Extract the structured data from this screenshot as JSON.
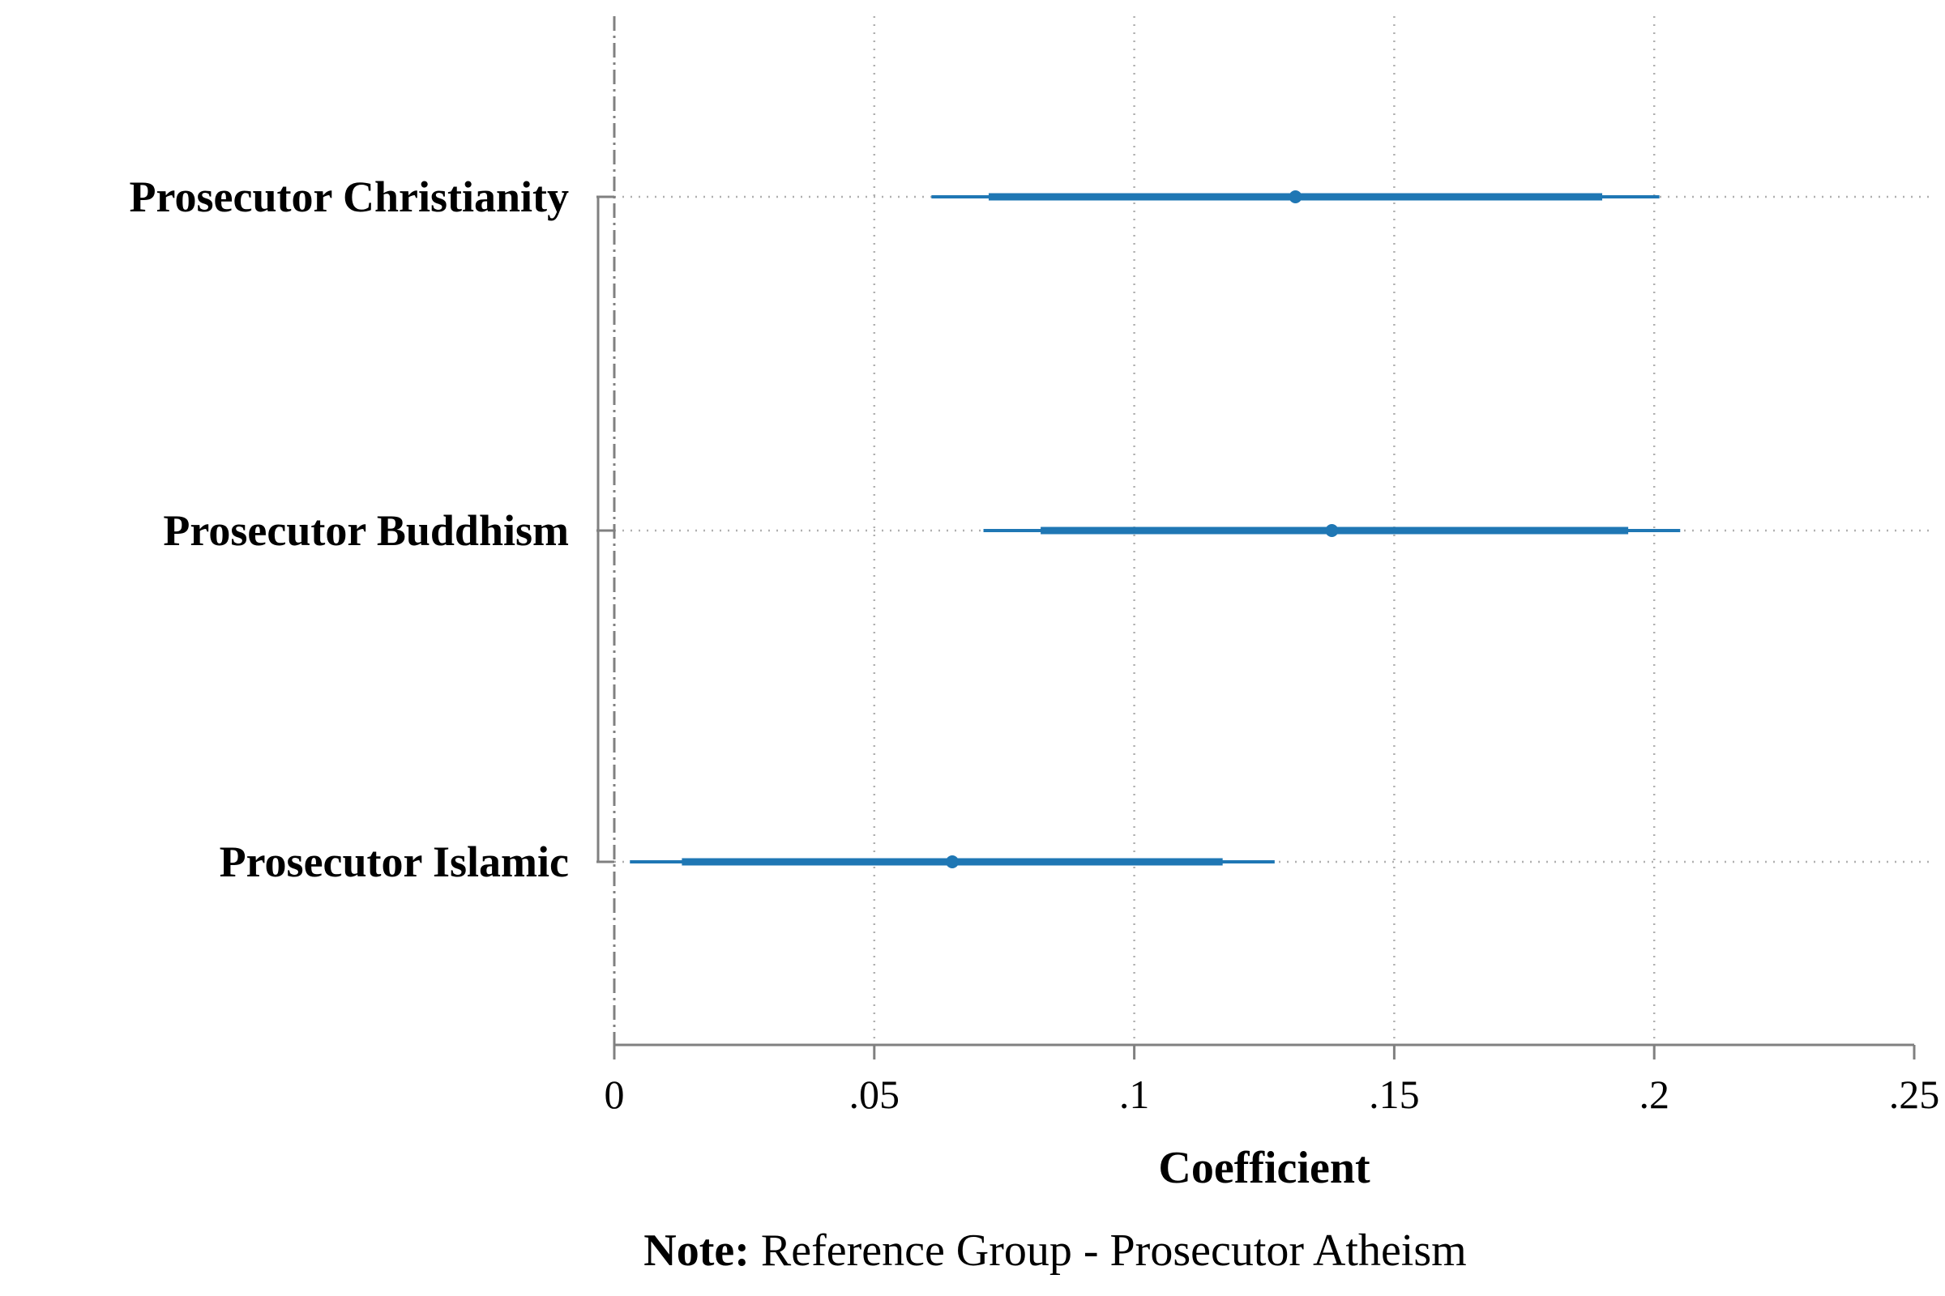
{
  "chart_data": {
    "type": "coefficient_plot",
    "xlabel": "Coefficient",
    "xlim": [
      0,
      0.25
    ],
    "xticks": [
      0,
      0.05,
      0.1,
      0.15,
      0.2,
      0.25
    ],
    "xtick_labels": [
      "0",
      ".05",
      ".1",
      ".15",
      ".2",
      ".25"
    ],
    "reference_line_x": 0,
    "grid": true,
    "series_color": "#1f77b4",
    "axis_color": "#808080",
    "categories": [
      "Prosecutor Christianity",
      "Prosecutor Buddhism",
      "Prosecutor Islamic"
    ],
    "coefficients": [
      {
        "label": "Prosecutor Christianity",
        "estimate": 0.131,
        "ci_inner": [
          0.072,
          0.19
        ],
        "ci_outer": [
          0.061,
          0.201
        ]
      },
      {
        "label": "Prosecutor Buddhism",
        "estimate": 0.138,
        "ci_inner": [
          0.082,
          0.195
        ],
        "ci_outer": [
          0.071,
          0.205
        ]
      },
      {
        "label": "Prosecutor Islamic",
        "estimate": 0.065,
        "ci_inner": [
          0.013,
          0.117
        ],
        "ci_outer": [
          0.003,
          0.127
        ]
      }
    ],
    "note_bold": "Note:",
    "note_text": " Reference Group - Prosecutor Atheism"
  }
}
